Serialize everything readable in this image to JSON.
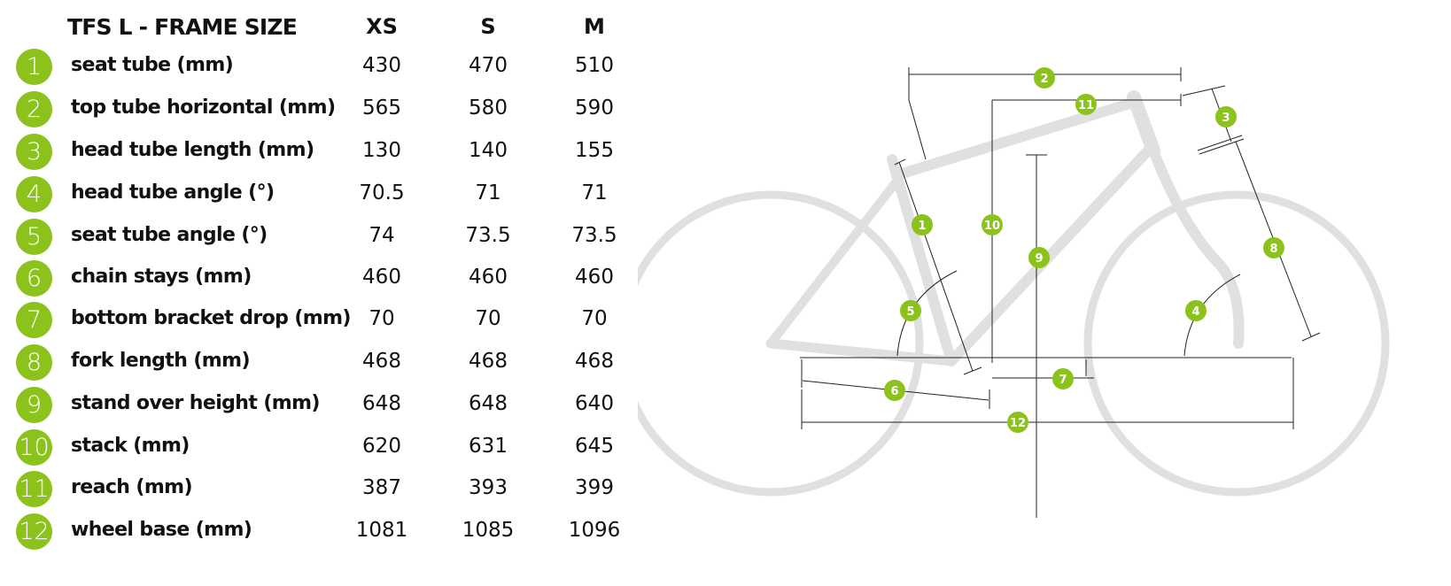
{
  "table": {
    "title": "TFS L - FRAME SIZE",
    "sizes": [
      "XS",
      "S",
      "M"
    ],
    "rows": [
      {
        "num": "1",
        "label": "seat tube (mm)",
        "values": [
          "430",
          "470",
          "510"
        ]
      },
      {
        "num": "2",
        "label": "top tube horizontal (mm)",
        "values": [
          "565",
          "580",
          "590"
        ]
      },
      {
        "num": "3",
        "label": "head tube length (mm)",
        "values": [
          "130",
          "140",
          "155"
        ]
      },
      {
        "num": "4",
        "label": "head tube angle (°)",
        "values": [
          "70.5",
          "71",
          "71"
        ]
      },
      {
        "num": "5",
        "label": "seat tube angle (°)",
        "values": [
          "74",
          "73.5",
          "73.5"
        ]
      },
      {
        "num": "6",
        "label": "chain stays (mm)",
        "values": [
          "460",
          "460",
          "460"
        ]
      },
      {
        "num": "7",
        "label": "bottom bracket drop (mm)",
        "values": [
          "70",
          "70",
          "70"
        ]
      },
      {
        "num": "8",
        "label": "fork length (mm)",
        "values": [
          "468",
          "468",
          "468"
        ]
      },
      {
        "num": "9",
        "label": "stand over height (mm)",
        "values": [
          "648",
          "648",
          "640"
        ]
      },
      {
        "num": "10",
        "label": "stack (mm)",
        "values": [
          "620",
          "631",
          "645"
        ]
      },
      {
        "num": "11",
        "label": "reach (mm)",
        "values": [
          "387",
          "393",
          "399"
        ]
      },
      {
        "num": "12",
        "label": "wheel base (mm)",
        "values": [
          "1081",
          "1085",
          "1096"
        ]
      }
    ]
  },
  "diagram": {
    "markers": {
      "m1": "1",
      "m2": "2",
      "m3": "3",
      "m4": "4",
      "m5": "5",
      "m6": "6",
      "m7": "7",
      "m8": "8",
      "m9": "9",
      "m10": "10",
      "m11": "11",
      "m12": "12"
    }
  },
  "colors": {
    "accent": "#8bc21b",
    "frame": "#e0e0e0",
    "text": "#111111",
    "badge_text": "#ffffff"
  }
}
